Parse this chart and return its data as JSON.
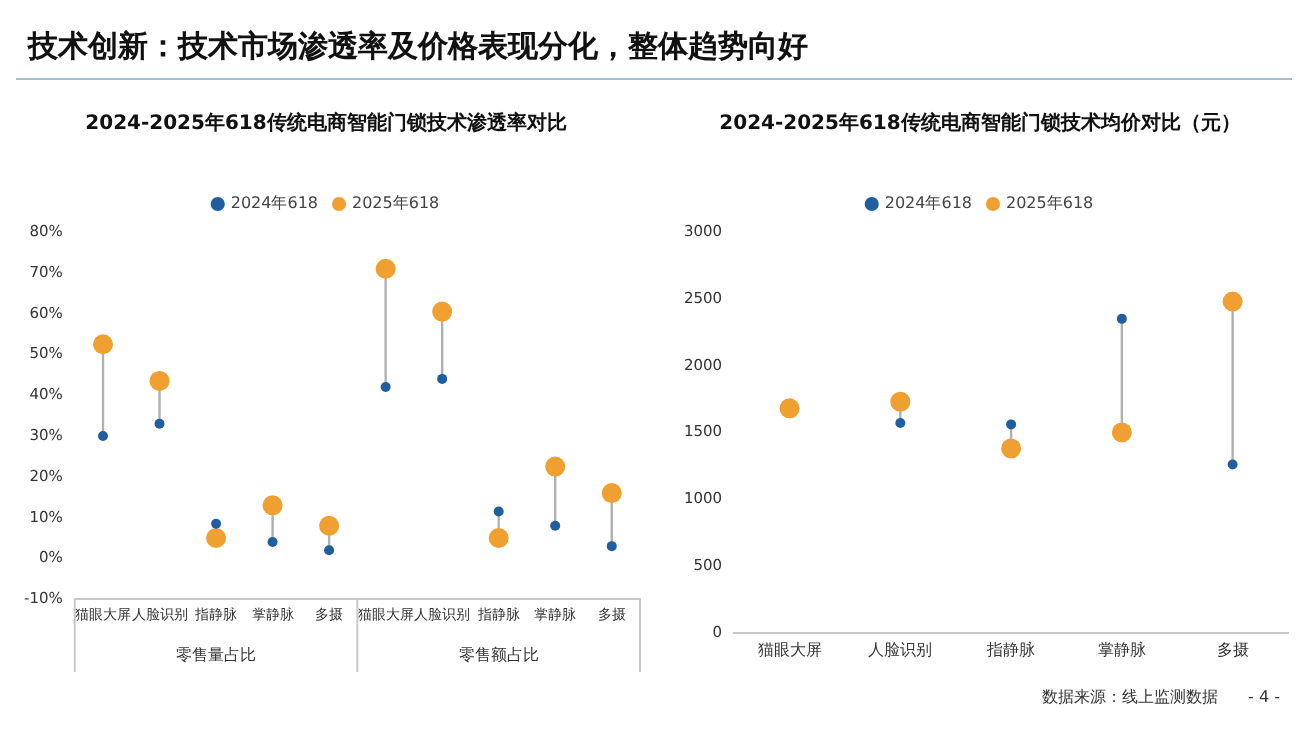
{
  "chart_data": [
    {
      "type": "scatter",
      "title": "2024-2025年618传统电商智能门锁技术渗透率对比",
      "categories": [
        "猫眼大屏",
        "人脸识别",
        "指静脉",
        "掌静脉",
        "多摄",
        "猫眼大屏",
        "人脸识别",
        "指静脉",
        "掌静脉",
        "多摄"
      ],
      "series": [
        {
          "name": "2024年618",
          "color": "#1f5fa0",
          "values": [
            30,
            33,
            8.5,
            4,
            2,
            42,
            44,
            11.5,
            8,
            3
          ]
        },
        {
          "name": "2025年618",
          "color": "#f0a030",
          "values": [
            52.5,
            43.5,
            5,
            13,
            8,
            71,
            60.5,
            5,
            22.5,
            16
          ]
        }
      ],
      "ylim": [
        -10,
        80
      ],
      "yticks": [
        {
          "value": -10,
          "label": "-10%"
        },
        {
          "value": 0,
          "label": "0%"
        },
        {
          "value": 10,
          "label": "10%"
        },
        {
          "value": 20,
          "label": "20%"
        },
        {
          "value": 30,
          "label": "30%"
        },
        {
          "value": 40,
          "label": "40%"
        },
        {
          "value": 50,
          "label": "50%"
        },
        {
          "value": 60,
          "label": "60%"
        },
        {
          "value": 70,
          "label": "70%"
        },
        {
          "value": 80,
          "label": "80%"
        }
      ],
      "grid": false,
      "legend": "top",
      "marker": "circle",
      "annotations": [
        "技术创新：技术市场渗透率及价格表现分化，整体趋势向好",
        "零售量占比",
        "零售额占比"
      ]
    },
    {
      "type": "scatter",
      "title": "2024-2025年618传统电商智能门锁技术均价对比（元）",
      "categories": [
        "猫眼大屏",
        "人脸识别",
        "指静脉",
        "掌静脉",
        "多摄"
      ],
      "series": [
        {
          "name": "2024年618",
          "color": "#1f5fa0",
          "values": [
            null,
            1570,
            1560,
            2350,
            1260
          ]
        },
        {
          "name": "2025年618",
          "color": "#f0a030",
          "values": [
            1680,
            1730,
            1380,
            1500,
            2480
          ]
        }
      ],
      "ylim": [
        0,
        3000
      ],
      "yticks": [
        0,
        500,
        1000,
        1500,
        2000,
        2500,
        3000
      ],
      "grid": false,
      "legend": "top",
      "marker": "circle",
      "annotations": [
        "数据来源：线上监测数据",
        "- 4 -"
      ]
    }
  ]
}
